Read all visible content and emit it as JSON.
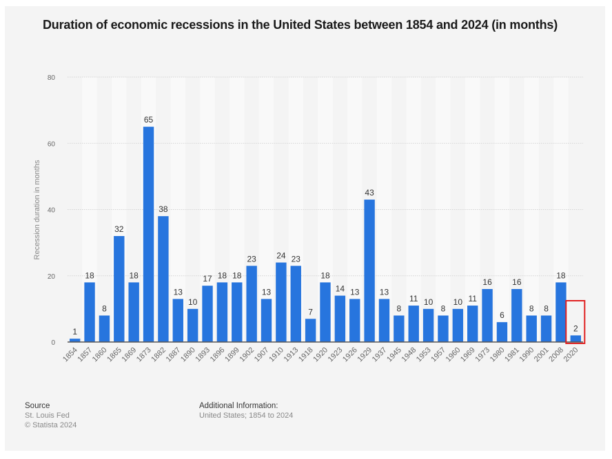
{
  "colors": {
    "bar": "#2775de",
    "highlight_box": "#e02020",
    "grid": "#d4d4d4",
    "band_light": "#f9f9f9",
    "axis": "#555555",
    "tick_text": "#666666",
    "label_text": "#333333"
  },
  "chart_data": {
    "type": "bar",
    "title": "Duration of economic recessions in the United States between 1854 and 2024 (in months)",
    "xlabel": "",
    "ylabel": "Recession duration in months",
    "ylim": [
      0,
      80
    ],
    "yticks": [
      0,
      20,
      40,
      60,
      80
    ],
    "grid": true,
    "legend": "none",
    "categories": [
      "1854",
      "1857",
      "1860",
      "1865",
      "1869",
      "1873",
      "1882",
      "1887",
      "1890",
      "1893",
      "1896",
      "1899",
      "1902",
      "1907",
      "1910",
      "1913",
      "1918",
      "1920",
      "1923",
      "1926",
      "1929",
      "1937",
      "1945",
      "1948",
      "1953",
      "1957",
      "1960",
      "1969",
      "1973",
      "1980",
      "1981",
      "1990",
      "2001",
      "2008",
      "2020"
    ],
    "values": [
      1,
      18,
      8,
      32,
      18,
      65,
      38,
      13,
      10,
      17,
      18,
      18,
      23,
      13,
      24,
      23,
      7,
      18,
      14,
      13,
      43,
      13,
      8,
      11,
      10,
      8,
      10,
      11,
      16,
      6,
      16,
      8,
      8,
      18,
      2
    ],
    "highlighted_category": "2020"
  },
  "footer": {
    "source_heading": "Source",
    "source_lines": [
      "St. Louis Fed",
      "© Statista 2024"
    ],
    "additional_heading": "Additional Information:",
    "additional_text": "United States; 1854 to 2024"
  }
}
